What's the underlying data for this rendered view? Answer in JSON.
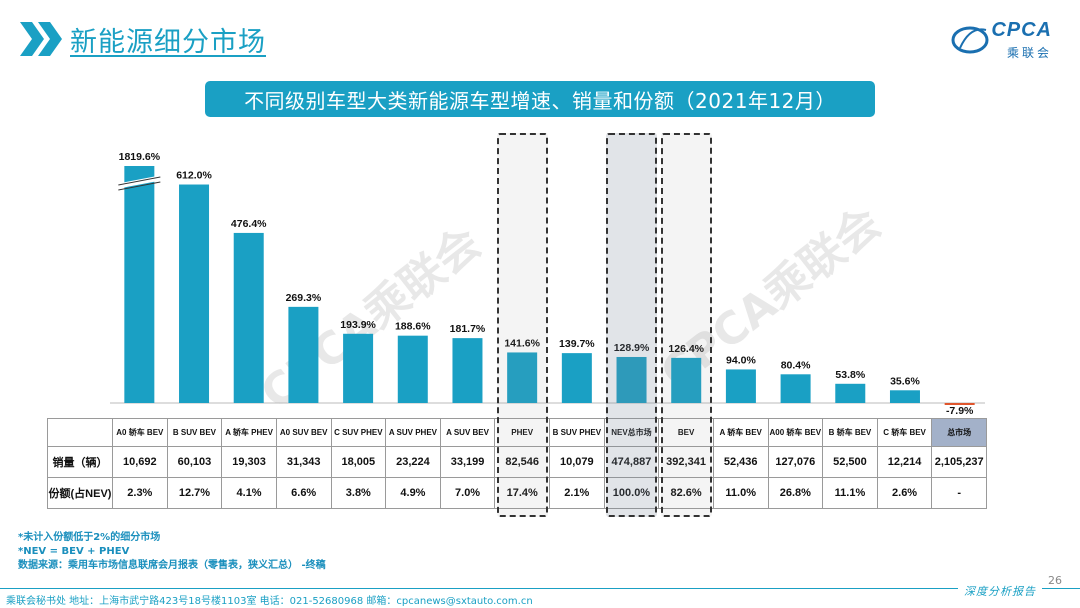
{
  "header": {
    "title": "新能源细分市场",
    "brand": "CPCA",
    "brand_cn": "乘联会"
  },
  "subtitle": "不同级别车型大类新能源车型增速、销量和份额（2021年12月）",
  "watermark": "CPCA乘联会",
  "colors": {
    "accent": "#1aa0c4",
    "bar": "#1aa0c4",
    "negative": "#e0562d",
    "total_cell": "#a3b1c9"
  },
  "chart_data": {
    "type": "bar",
    "title": "不同级别车型大类新能源车型增速、销量和份额（2021年12月）",
    "categories": [
      "A0 轿车 BEV",
      "B SUV BEV",
      "A 轿车 PHEV",
      "A0 SUV BEV",
      "C SUV PHEV",
      "A SUV PHEV",
      "A SUV BEV",
      "PHEV",
      "B SUV PHEV",
      "NEV总市场",
      "BEV",
      "A 轿车 BEV",
      "A00 轿车 BEV",
      "B 轿车 BEV",
      "C 轿车 BEV",
      "总市场"
    ],
    "growth_values": [
      1819.6,
      612.0,
      476.4,
      269.3,
      193.9,
      188.6,
      181.7,
      141.6,
      139.7,
      128.9,
      126.4,
      94.0,
      80.4,
      53.8,
      35.6,
      -7.9
    ],
    "growth_labels": [
      "1819.6%",
      "612.0%",
      "476.4%",
      "269.3%",
      "193.9%",
      "188.6%",
      "181.7%",
      "141.6%",
      "139.7%",
      "128.9%",
      "126.4%",
      "94.0%",
      "80.4%",
      "53.8%",
      "35.6%",
      "-7.9%"
    ],
    "axis_break_first_bar": true,
    "ylim": [
      -10,
      650
    ],
    "highlighted": [
      "PHEV",
      "NEV总市场",
      "BEV"
    ]
  },
  "table": {
    "row_labels": [
      "销量（辆）",
      "份额(占NEV)"
    ],
    "sales": [
      "10,692",
      "60,103",
      "19,303",
      "31,343",
      "18,005",
      "23,224",
      "33,199",
      "82,546",
      "10,079",
      "474,887",
      "392,341",
      "52,436",
      "127,076",
      "52,500",
      "12,214",
      "2,105,237"
    ],
    "shares": [
      "2.3%",
      "12.7%",
      "4.1%",
      "6.6%",
      "3.8%",
      "4.9%",
      "7.0%",
      "17.4%",
      "2.1%",
      "100.0%",
      "82.6%",
      "11.0%",
      "26.8%",
      "11.1%",
      "2.6%",
      "-"
    ]
  },
  "footnotes": [
    "*未计入份额低于2%的细分市场",
    "*NEV = BEV + PHEV",
    "数据来源：乘用车市场信息联席会月报表（零售表，狭义汇总）  -终稿"
  ],
  "footer": {
    "info": "乘联会秘书处    地址：上海市武宁路423号18号楼1103室    电话：021-52680968    邮箱：cpcanews@sxtauto.com.cn",
    "tag": "深度分析报告",
    "page": "26"
  }
}
